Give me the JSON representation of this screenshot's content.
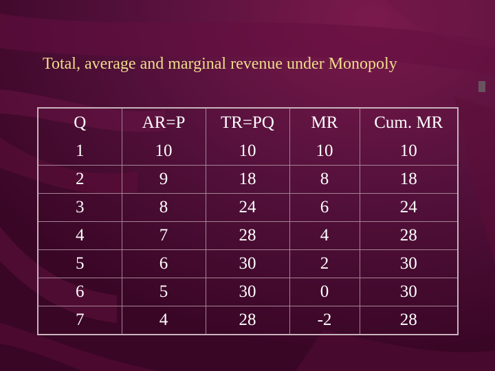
{
  "slide": {
    "title": "Total, average and marginal revenue under Monopoly"
  },
  "table": {
    "headers": [
      "Q",
      "AR=P",
      "TR=PQ",
      "MR",
      "Cum. MR"
    ],
    "rows": [
      [
        "1",
        "10",
        "10",
        "10",
        "10"
      ],
      [
        "2",
        "9",
        "18",
        "8",
        "18"
      ],
      [
        "3",
        "8",
        "24",
        "6",
        "24"
      ],
      [
        "4",
        "7",
        "28",
        "4",
        "28"
      ],
      [
        "5",
        "6",
        "30",
        "2",
        "30"
      ],
      [
        "6",
        "5",
        "30",
        "0",
        "30"
      ],
      [
        "7",
        "4",
        "28",
        "-2",
        "28"
      ]
    ]
  },
  "colors": {
    "background": "#4a0a2e",
    "title_text": "#f0dc8c",
    "table_text": "#ffffff",
    "grid_line": "#a68596"
  }
}
